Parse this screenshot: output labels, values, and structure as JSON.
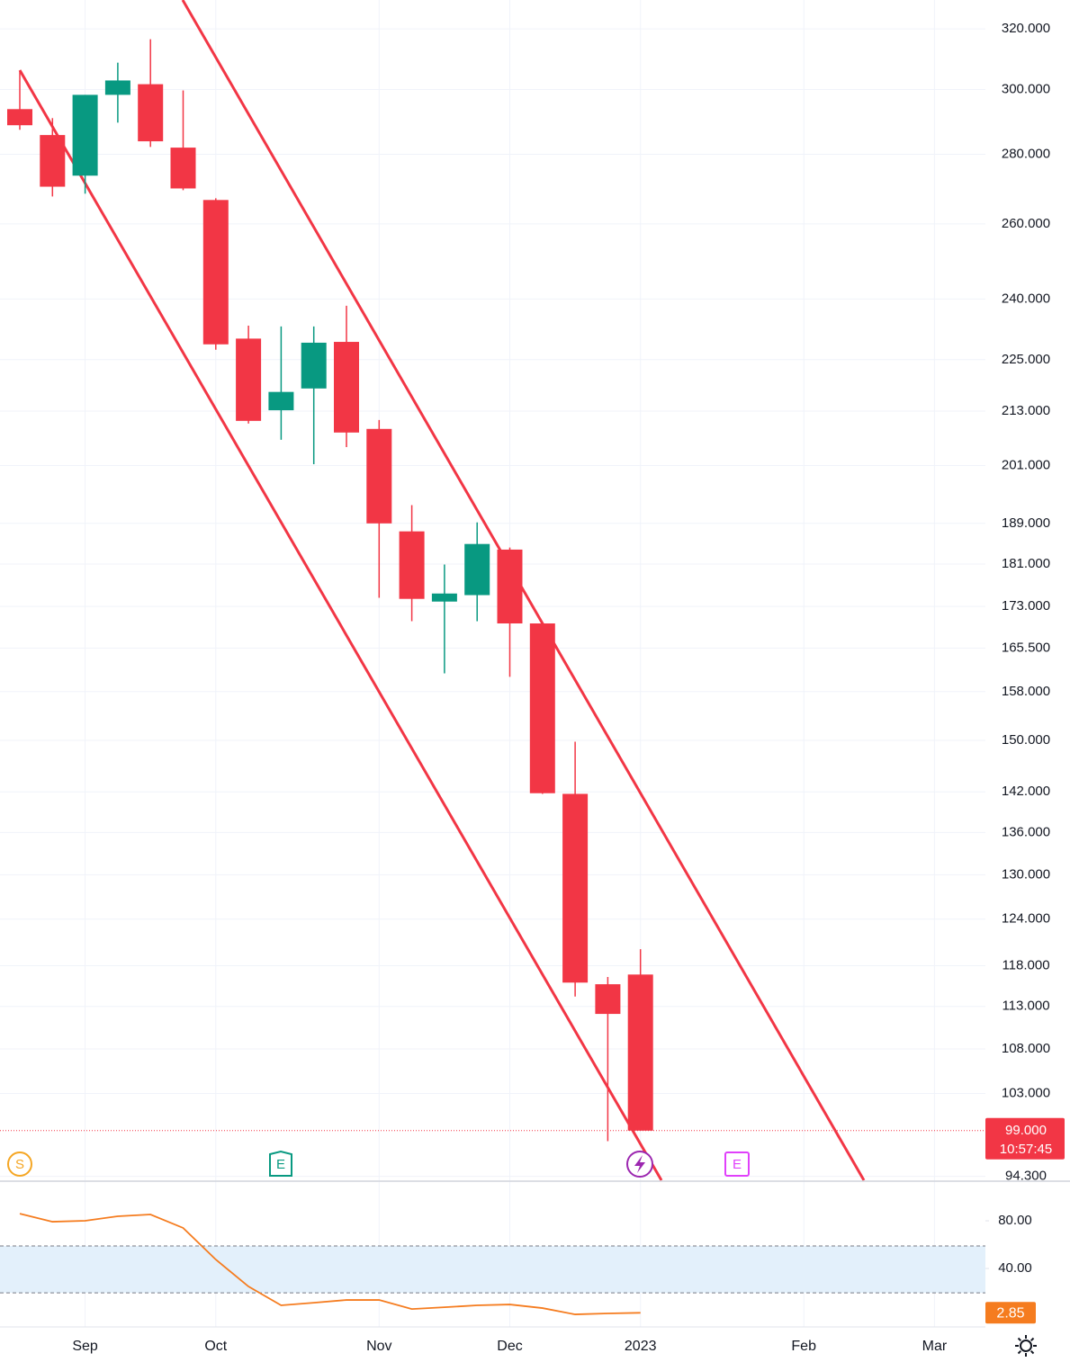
{
  "chart_data": [
    {
      "type": "candlestick",
      "log_scale": true,
      "grid": true,
      "up_color": "#089981",
      "down_color": "#f23645",
      "categories": [
        null,
        null,
        "Sep",
        null,
        null,
        null,
        "Oct",
        null,
        null,
        null,
        null,
        "Nov",
        null,
        null,
        null,
        "Dec",
        null,
        null,
        null,
        "2023",
        null,
        null,
        null,
        null,
        "Feb",
        null,
        null,
        null,
        "Mar",
        null
      ],
      "open": [
        293.8,
        285.8,
        273.7,
        298.3,
        301.7,
        282.0,
        266.7,
        230.1,
        213.2,
        218.2,
        229.3,
        209.0,
        187.4,
        173.9,
        175.1,
        183.8,
        169.9,
        141.7,
        115.7,
        116.9,
        null,
        null,
        null,
        null,
        null,
        null,
        null,
        null,
        null,
        null
      ],
      "high": [
        305.9,
        291.0,
        298.3,
        308.7,
        316.5,
        299.7,
        267.2,
        233.3,
        233.1,
        233.1,
        238.3,
        211.0,
        192.7,
        180.9,
        189.2,
        184.2,
        169.9,
        149.8,
        116.6,
        120.1,
        null,
        null,
        null,
        null,
        null,
        null,
        null,
        null,
        null,
        null
      ],
      "low": [
        287.4,
        267.7,
        268.5,
        289.6,
        282.2,
        269.5,
        227.4,
        210.2,
        206.6,
        201.3,
        205.0,
        174.6,
        170.3,
        161.1,
        170.3,
        160.5,
        141.7,
        114.2,
        97.9,
        99.0,
        null,
        null,
        null,
        null,
        null,
        null,
        null,
        null,
        null,
        null
      ],
      "close": [
        288.8,
        270.5,
        298.3,
        302.9,
        283.9,
        270.0,
        228.7,
        210.8,
        217.4,
        229.1,
        208.2,
        189.0,
        174.4,
        175.4,
        184.9,
        169.9,
        141.8,
        115.9,
        112.1,
        99.0,
        null,
        null,
        null,
        null,
        null,
        null,
        null,
        null,
        null,
        null
      ],
      "ylim": [
        93.9,
        330
      ],
      "yticks": [
        {
          "value": 320,
          "label": "320.000"
        },
        {
          "value": 300,
          "label": "300.000"
        },
        {
          "value": 280,
          "label": "280.000"
        },
        {
          "value": 260,
          "label": "260.000"
        },
        {
          "value": 240,
          "label": "240.000"
        },
        {
          "value": 225,
          "label": "225.000"
        },
        {
          "value": 213,
          "label": "213.000"
        },
        {
          "value": 201,
          "label": "201.000"
        },
        {
          "value": 189,
          "label": "189.000"
        },
        {
          "value": 181,
          "label": "181.000"
        },
        {
          "value": 173,
          "label": "173.000"
        },
        {
          "value": 165.5,
          "label": "165.500"
        },
        {
          "value": 158,
          "label": "158.000"
        },
        {
          "value": 150,
          "label": "150.000"
        },
        {
          "value": 142,
          "label": "142.000"
        },
        {
          "value": 136,
          "label": "136.000"
        },
        {
          "value": 130,
          "label": "130.000"
        },
        {
          "value": 124,
          "label": "124.000"
        },
        {
          "value": 118,
          "label": "118.000"
        },
        {
          "value": 113,
          "label": "113.000"
        },
        {
          "value": 108,
          "label": "108.000"
        },
        {
          "value": 103,
          "label": "103.000"
        },
        {
          "value": 94.3,
          "label": "94.300"
        }
      ],
      "price_label": {
        "value": 99,
        "label": "99.000"
      },
      "countdown": "10:57:45",
      "events": [
        {
          "label": "S"
        },
        {
          "label": "E"
        },
        {
          "label": "E"
        }
      ]
    },
    {
      "type": "line",
      "color": "#f57c1f",
      "band_color": "#e3f0fb",
      "values": [
        86.0,
        79.2,
        80.0,
        83.8,
        85.3,
        74.0,
        47.5,
        24.9,
        9.1,
        11.3,
        13.6,
        13.6,
        6.0,
        7.5,
        9.1,
        9.8,
        6.8,
        1.5,
        2.3,
        2.85
      ],
      "band": [
        19.6,
        58.9
      ],
      "ylim": [
        -9,
        111.7
      ],
      "yticks": [
        {
          "value": 80,
          "label": "80.00"
        },
        {
          "value": 40,
          "label": "40.00"
        }
      ]
    }
  ]
}
